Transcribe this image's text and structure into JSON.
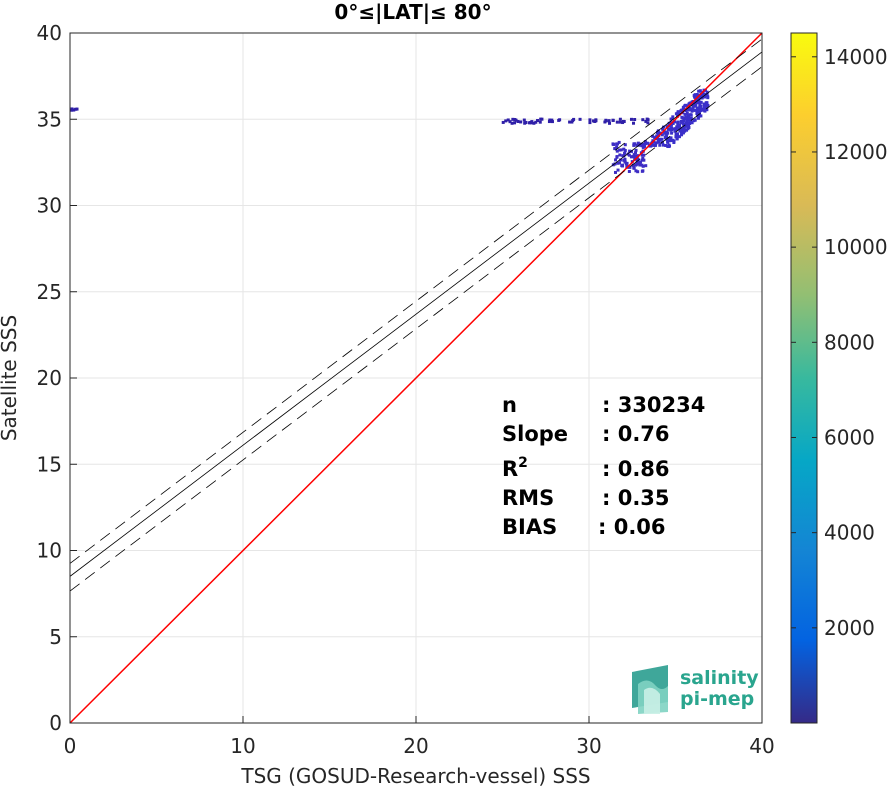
{
  "chart_data": {
    "type": "heatmap",
    "title": "0°≤|LAT|≤ 80°",
    "xlabel": "TSG (GOSUD-Research-vessel) SSS",
    "ylabel": "Satellite SSS",
    "xlim": [
      0,
      40
    ],
    "ylim": [
      0,
      40
    ],
    "xticks": [
      "0",
      "10",
      "20",
      "30",
      "40"
    ],
    "yticks": [
      "0",
      "5",
      "10",
      "15",
      "20",
      "25",
      "30",
      "35",
      "40"
    ],
    "grid": true,
    "colorbar": {
      "min": 0,
      "max": 14500,
      "ticks": [
        "2000",
        "4000",
        "6000",
        "8000",
        "10000",
        "12000",
        "14000"
      ],
      "colormap": "parula"
    },
    "reference_line": {
      "name": "1:1",
      "color": "#ff0000",
      "x": [
        0,
        40
      ],
      "y": [
        0,
        40
      ]
    },
    "regression": {
      "slope": 0.76,
      "intercept": 8.5,
      "x": [
        0,
        40
      ],
      "upper_offset": 0.75,
      "lower_offset": 0.85
    },
    "density_clusters": [
      {
        "x": [
          31.3,
          33.2
        ],
        "y": [
          32.0,
          33.8
        ],
        "color": "#3d2dc4"
      },
      {
        "x": [
          33.0,
          36.8
        ],
        "y": [
          33.5,
          36.8
        ],
        "color": "#3a2fc9"
      },
      {
        "x": [
          24.8,
          33.5
        ],
        "y": [
          34.85,
          35.1
        ],
        "color": "#2f1fa8"
      },
      {
        "x": [
          0.0,
          0.4
        ],
        "y": [
          35.6,
          35.7
        ],
        "color": "#2f1fa8"
      }
    ]
  },
  "stats": [
    {
      "key": "n",
      "value": ": 330234"
    },
    {
      "key": "Slope",
      "value": ": 0.76"
    },
    {
      "key": "R",
      "sup": "2",
      "value": ": 0.86"
    },
    {
      "key": "RMS",
      "value": ": 0.35"
    },
    {
      "key": "BIAS",
      "value": ": 0.06"
    }
  ],
  "logo": {
    "line1": "salinity",
    "line2": "pi-mep"
  }
}
